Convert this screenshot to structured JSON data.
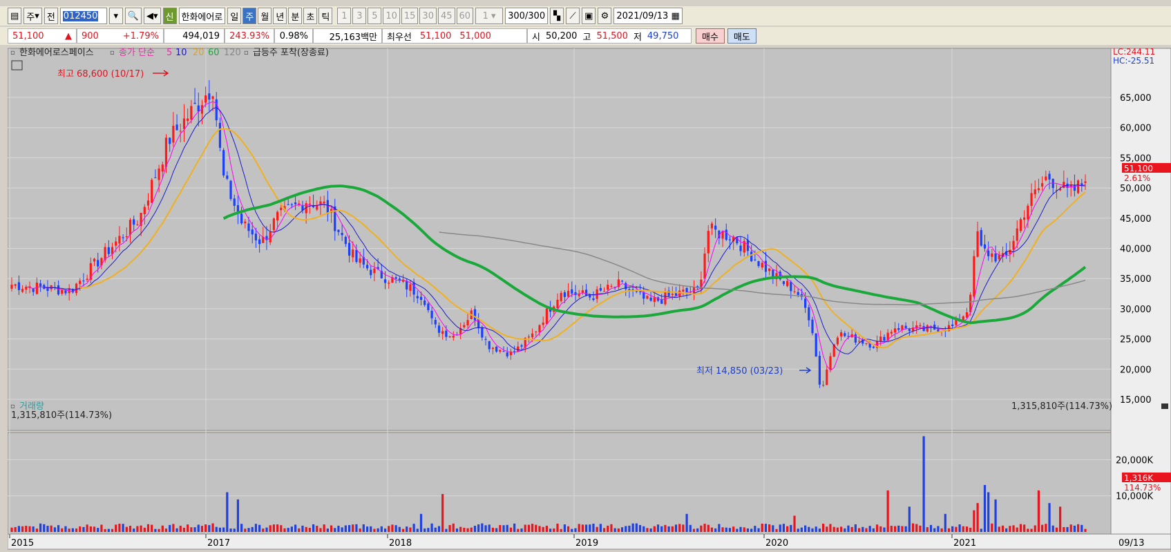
{
  "toolbar": {
    "market": "주",
    "prev": "전",
    "code": "012450",
    "name": "한화에어로",
    "new_badge": "신",
    "periods": [
      "일",
      "주",
      "월",
      "년",
      "분",
      "초",
      "틱"
    ],
    "selected_period": "주",
    "intervals": [
      "1",
      "3",
      "5",
      "10",
      "15",
      "30",
      "45",
      "60"
    ],
    "count_sel": "1",
    "count": "300",
    "count_max": "/300",
    "date": "2021/09/13"
  },
  "quote": {
    "price": "51,100",
    "arrow": "▲",
    "change": "900",
    "change_pct": "+1.79%",
    "volume": "494,019",
    "vol_ratio": "243.93%",
    "turnover": "0.98%",
    "amount": "25,163백만",
    "best_label": "최우선",
    "ask": "51,100",
    "bid": "51,000",
    "open_label": "시",
    "open": "50,200",
    "high_label": "고",
    "high": "51,500",
    "low_label": "저",
    "low": "49,750",
    "buy_label": "매수",
    "sell_label": "매도"
  },
  "legend": {
    "stock": "한화에어로스페이스",
    "ma_label": "종가 단순",
    "ma5": "5",
    "ma10": "10",
    "ma20": "20",
    "ma60": "60",
    "ma120": "120",
    "signal": "급등주 포착(장종료)"
  },
  "lc_text": "LC:244.11",
  "hc_text": "HC:-25.51",
  "vol_legend": "거래량",
  "vol_value_left": "1,315,810주(114.73%)",
  "vol_value_right": "1,315,810주(114.73%)",
  "chart_data": {
    "type": "candlestick",
    "x_ticks": [
      "2015",
      "2017",
      "2018",
      "2019",
      "2020",
      "2021",
      "09/13"
    ],
    "price_ticks": [
      "65,000",
      "60,000",
      "55,000",
      "50,000",
      "45,000",
      "40,000",
      "35,000",
      "30,000",
      "25,000",
      "20,000",
      "15,000"
    ],
    "volume_ticks": [
      "20,000K",
      "10,000K"
    ],
    "high_note": "최고 68,600 (10/17)",
    "low_note": "최저 14,850 (03/23)",
    "last_price": "51,100",
    "last_pct": "2.61%",
    "last_volume": "1,316K",
    "last_volume_pct": "114.73%",
    "price_anchors": [
      {
        "t": 0,
        "p": 34000
      },
      {
        "t": 0.06,
        "p": 33000
      },
      {
        "t": 0.1,
        "p": 40000
      },
      {
        "t": 0.13,
        "p": 45000
      },
      {
        "t": 0.16,
        "p": 58000
      },
      {
        "t": 0.185,
        "p": 63000
      },
      {
        "t": 0.205,
        "p": 67000
      },
      {
        "t": 0.215,
        "p": 52000
      },
      {
        "t": 0.235,
        "p": 44000
      },
      {
        "t": 0.255,
        "p": 41000
      },
      {
        "t": 0.27,
        "p": 45000
      },
      {
        "t": 0.3,
        "p": 48000
      },
      {
        "t": 0.32,
        "p": 47000
      },
      {
        "t": 0.35,
        "p": 38000
      },
      {
        "t": 0.37,
        "p": 36000
      },
      {
        "t": 0.4,
        "p": 34000
      },
      {
        "t": 0.42,
        "p": 32000
      },
      {
        "t": 0.43,
        "p": 27000
      },
      {
        "t": 0.45,
        "p": 25500
      },
      {
        "t": 0.47,
        "p": 29500
      },
      {
        "t": 0.485,
        "p": 24000
      },
      {
        "t": 0.51,
        "p": 22500
      },
      {
        "t": 0.53,
        "p": 25500
      },
      {
        "t": 0.56,
        "p": 33000
      },
      {
        "t": 0.59,
        "p": 32000
      },
      {
        "t": 0.62,
        "p": 34000
      },
      {
        "t": 0.65,
        "p": 31000
      },
      {
        "t": 0.68,
        "p": 32500
      },
      {
        "t": 0.7,
        "p": 33000
      },
      {
        "t": 0.71,
        "p": 43000
      },
      {
        "t": 0.735,
        "p": 42000
      },
      {
        "t": 0.76,
        "p": 38000
      },
      {
        "t": 0.78,
        "p": 35000
      },
      {
        "t": 0.8,
        "p": 33000
      },
      {
        "t": 0.815,
        "p": 28000
      },
      {
        "t": 0.825,
        "p": 16000
      },
      {
        "t": 0.84,
        "p": 26000
      },
      {
        "t": 0.86,
        "p": 25000
      },
      {
        "t": 0.88,
        "p": 24000
      },
      {
        "t": 0.9,
        "p": 27000
      },
      {
        "t": 0.93,
        "p": 26500
      },
      {
        "t": 0.96,
        "p": 27000
      },
      {
        "t": 0.975,
        "p": 30000
      },
      {
        "t": 0.985,
        "p": 43000
      },
      {
        "t": 1.0,
        "p": 40000
      }
    ],
    "price_anchors_2021": [
      {
        "t": 0,
        "p": 40000
      },
      {
        "t": 0.25,
        "p": 38000
      },
      {
        "t": 0.45,
        "p": 47000
      },
      {
        "t": 0.65,
        "p": 52000
      },
      {
        "t": 0.85,
        "p": 49000
      },
      {
        "t": 1.0,
        "p": 51100
      }
    ],
    "series": [
      {
        "name": "5",
        "color": "#ff00ff"
      },
      {
        "name": "10",
        "color": "#1a1acc"
      },
      {
        "name": "20",
        "color": "#f0b020"
      },
      {
        "name": "60",
        "color": "#1aa83a"
      },
      {
        "name": "120",
        "color": "#888888"
      }
    ],
    "volume_spikes": [
      {
        "t": 0.2,
        "v": 11000
      },
      {
        "t": 0.21,
        "v": 9000
      },
      {
        "t": 0.38,
        "v": 5000
      },
      {
        "t": 0.4,
        "v": 10500
      },
      {
        "t": 0.628,
        "v": 5000
      },
      {
        "t": 0.73,
        "v": 4500
      },
      {
        "t": 0.817,
        "v": 11500
      },
      {
        "t": 0.835,
        "v": 7000
      },
      {
        "t": 0.849,
        "v": 26500
      },
      {
        "t": 0.87,
        "v": 5000
      },
      {
        "t": 0.895,
        "v": 6000
      },
      {
        "t": 0.9,
        "v": 8000
      },
      {
        "t": 0.905,
        "v": 13000
      },
      {
        "t": 0.91,
        "v": 11000
      },
      {
        "t": 0.915,
        "v": 9000
      },
      {
        "t": 0.955,
        "v": 11500
      },
      {
        "t": 0.965,
        "v": 8000
      },
      {
        "t": 0.975,
        "v": 7000
      }
    ]
  }
}
